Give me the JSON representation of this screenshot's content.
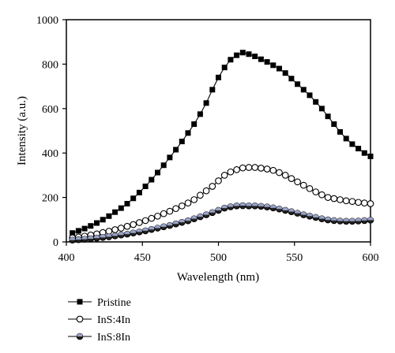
{
  "chart_data": {
    "type": "line",
    "title": "",
    "xlabel": "Wavelength (nm)",
    "ylabel": "Intensity (a.u.)",
    "xlim": [
      400,
      600
    ],
    "ylim": [
      0,
      1000
    ],
    "xticks": [
      400,
      450,
      500,
      550,
      600
    ],
    "yticks": [
      0,
      200,
      400,
      600,
      800,
      1000
    ],
    "grid": false,
    "legend_position": "below-left",
    "series": [
      {
        "name": "Pristine",
        "marker": "filled-square",
        "color": "#000000",
        "x": [
          404,
          408,
          412,
          416,
          420,
          424,
          428,
          432,
          436,
          440,
          444,
          448,
          452,
          456,
          460,
          464,
          468,
          472,
          476,
          480,
          484,
          488,
          492,
          496,
          500,
          504,
          508,
          512,
          516,
          520,
          524,
          528,
          532,
          536,
          540,
          544,
          548,
          552,
          556,
          560,
          564,
          568,
          572,
          576,
          580,
          584,
          588,
          592,
          596,
          600
        ],
        "y": [
          40,
          50,
          60,
          72,
          85,
          100,
          116,
          134,
          152,
          172,
          196,
          222,
          250,
          280,
          312,
          345,
          380,
          415,
          452,
          490,
          530,
          575,
          625,
          685,
          740,
          785,
          820,
          840,
          852,
          845,
          835,
          822,
          810,
          795,
          780,
          760,
          735,
          710,
          685,
          660,
          630,
          600,
          565,
          530,
          495,
          465,
          440,
          420,
          400,
          385
        ]
      },
      {
        "name": "InS:4In",
        "marker": "open-circle",
        "color": "#000000",
        "x": [
          404,
          408,
          412,
          416,
          420,
          424,
          428,
          432,
          436,
          440,
          444,
          448,
          452,
          456,
          460,
          464,
          468,
          472,
          476,
          480,
          484,
          488,
          492,
          496,
          500,
          504,
          508,
          512,
          516,
          520,
          524,
          528,
          532,
          536,
          540,
          544,
          548,
          552,
          556,
          560,
          564,
          568,
          572,
          576,
          580,
          584,
          588,
          592,
          596,
          600
        ],
        "y": [
          18,
          22,
          26,
          31,
          36,
          42,
          48,
          55,
          62,
          70,
          78,
          87,
          96,
          106,
          116,
          127,
          138,
          150,
          162,
          175,
          190,
          210,
          230,
          250,
          275,
          300,
          315,
          325,
          333,
          335,
          335,
          332,
          328,
          322,
          312,
          300,
          285,
          270,
          255,
          240,
          225,
          212,
          200,
          195,
          190,
          185,
          182,
          178,
          175,
          172
        ]
      },
      {
        "name": "InS:8In",
        "marker": "half-filled-circle",
        "color": "#000000",
        "x": [
          404,
          408,
          412,
          416,
          420,
          424,
          428,
          432,
          436,
          440,
          444,
          448,
          452,
          456,
          460,
          464,
          468,
          472,
          476,
          480,
          484,
          488,
          492,
          496,
          500,
          504,
          508,
          512,
          516,
          520,
          524,
          528,
          532,
          536,
          540,
          544,
          548,
          552,
          556,
          560,
          564,
          568,
          572,
          576,
          580,
          584,
          588,
          592,
          596,
          600
        ],
        "y": [
          8,
          10,
          12,
          14,
          17,
          20,
          23,
          27,
          31,
          35,
          40,
          45,
          50,
          56,
          62,
          68,
          74,
          81,
          88,
          95,
          104,
          113,
          122,
          132,
          142,
          152,
          158,
          162,
          163,
          162,
          162,
          160,
          157,
          153,
          148,
          142,
          136,
          129,
          122,
          116,
          110,
          104,
          99,
          96,
          94,
          93,
          93,
          94,
          96,
          98
        ]
      }
    ]
  }
}
